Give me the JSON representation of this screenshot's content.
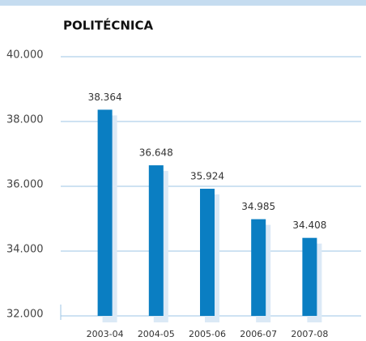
{
  "chart_data": {
    "type": "bar",
    "title": "POLITÉCNICA",
    "categories": [
      "2003-04",
      "2004-05",
      "2005-06",
      "2006-07",
      "2007-08"
    ],
    "values": [
      38364,
      36648,
      35924,
      34985,
      34408
    ],
    "value_labels": [
      "38.364",
      "36.648",
      "35.924",
      "34.985",
      "34.408"
    ],
    "color": "#0a7ec2",
    "ylim": [
      32000,
      40000
    ],
    "yticks": [
      {
        "value": 32000,
        "label": "32.000"
      },
      {
        "value": 34000,
        "label": "34.000"
      },
      {
        "value": 36000,
        "label": "36.000"
      },
      {
        "value": 38000,
        "label": "38.000"
      },
      {
        "value": 40000,
        "label": "40.000"
      }
    ],
    "grid": true
  }
}
